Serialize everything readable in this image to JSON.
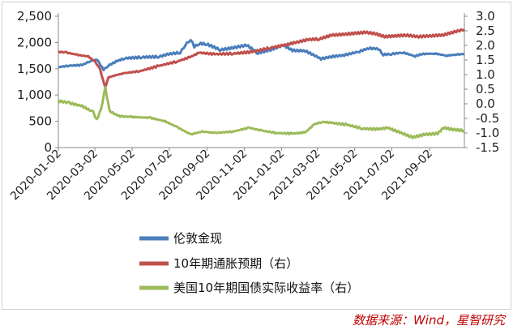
{
  "source": "数据来源：Wind，星智研究",
  "chart_data": {
    "type": "line",
    "x_ticks": [
      "2020-01-02",
      "2020-03-02",
      "2020-05-02",
      "2020-07-02",
      "2020-09-02",
      "2020-11-02",
      "2021-01-02",
      "2021-03-02",
      "2021-05-02",
      "2021-07-02",
      "2021-09-02"
    ],
    "x_range": [
      "2020-01-02",
      "2021-10-29"
    ],
    "y_left": {
      "ticks": [
        "0",
        "500",
        "1,000",
        "1,500",
        "2,000",
        "2,500"
      ],
      "min": 0,
      "max": 2500
    },
    "y_right": {
      "ticks": [
        "-1.5",
        "-1.0",
        "-0.5",
        "0.0",
        "0.5",
        "1.0",
        "1.5",
        "2.0",
        "2.5",
        "3.0"
      ],
      "min": -1.5,
      "max": 3.0
    },
    "legend_position": "bottom",
    "grid": false,
    "series": [
      {
        "name": "伦敦金现",
        "axis": "left",
        "color": "#4a7ebb",
        "points": [
          [
            "2020-01-02",
            1530
          ],
          [
            "2020-01-20",
            1560
          ],
          [
            "2020-02-10",
            1570
          ],
          [
            "2020-02-24",
            1650
          ],
          [
            "2020-03-06",
            1670
          ],
          [
            "2020-03-16",
            1480
          ],
          [
            "2020-03-24",
            1560
          ],
          [
            "2020-04-08",
            1650
          ],
          [
            "2020-04-20",
            1700
          ],
          [
            "2020-05-18",
            1720
          ],
          [
            "2020-06-15",
            1730
          ],
          [
            "2020-07-01",
            1780
          ],
          [
            "2020-07-20",
            1810
          ],
          [
            "2020-07-28",
            1950
          ],
          [
            "2020-08-06",
            2060
          ],
          [
            "2020-08-12",
            1920
          ],
          [
            "2020-08-20",
            1980
          ],
          [
            "2020-09-01",
            1970
          ],
          [
            "2020-09-24",
            1860
          ],
          [
            "2020-10-15",
            1900
          ],
          [
            "2020-11-06",
            1950
          ],
          [
            "2020-11-24",
            1800
          ],
          [
            "2020-12-15",
            1860
          ],
          [
            "2021-01-05",
            1950
          ],
          [
            "2021-01-20",
            1850
          ],
          [
            "2021-02-10",
            1840
          ],
          [
            "2021-03-08",
            1690
          ],
          [
            "2021-03-25",
            1730
          ],
          [
            "2021-04-15",
            1760
          ],
          [
            "2021-05-10",
            1830
          ],
          [
            "2021-05-25",
            1890
          ],
          [
            "2021-06-10",
            1880
          ],
          [
            "2021-06-18",
            1770
          ],
          [
            "2021-07-01",
            1780
          ],
          [
            "2021-07-20",
            1810
          ],
          [
            "2021-08-09",
            1740
          ],
          [
            "2021-08-20",
            1780
          ],
          [
            "2021-09-10",
            1790
          ],
          [
            "2021-09-30",
            1750
          ],
          [
            "2021-10-15",
            1770
          ],
          [
            "2021-10-29",
            1780
          ]
        ]
      },
      {
        "name": "10年期通胀预期（右）",
        "axis": "right",
        "color": "#c0504d",
        "points": [
          [
            "2020-01-02",
            1.78
          ],
          [
            "2020-01-15",
            1.76
          ],
          [
            "2020-02-01",
            1.68
          ],
          [
            "2020-02-20",
            1.62
          ],
          [
            "2020-03-02",
            1.45
          ],
          [
            "2020-03-10",
            1.2
          ],
          [
            "2020-03-19",
            0.55
          ],
          [
            "2020-03-24",
            0.9
          ],
          [
            "2020-04-05",
            0.98
          ],
          [
            "2020-04-20",
            1.05
          ],
          [
            "2020-05-15",
            1.12
          ],
          [
            "2020-06-15",
            1.3
          ],
          [
            "2020-07-15",
            1.45
          ],
          [
            "2020-08-05",
            1.6
          ],
          [
            "2020-08-20",
            1.75
          ],
          [
            "2020-09-15",
            1.7
          ],
          [
            "2020-10-15",
            1.72
          ],
          [
            "2020-11-15",
            1.78
          ],
          [
            "2020-12-15",
            1.92
          ],
          [
            "2021-01-05",
            2.0
          ],
          [
            "2021-01-25",
            2.1
          ],
          [
            "2021-02-15",
            2.2
          ],
          [
            "2021-03-05",
            2.22
          ],
          [
            "2021-03-25",
            2.35
          ],
          [
            "2021-04-15",
            2.38
          ],
          [
            "2021-05-05",
            2.42
          ],
          [
            "2021-05-20",
            2.45
          ],
          [
            "2021-06-05",
            2.4
          ],
          [
            "2021-06-20",
            2.3
          ],
          [
            "2021-07-10",
            2.33
          ],
          [
            "2021-07-25",
            2.35
          ],
          [
            "2021-08-15",
            2.3
          ],
          [
            "2021-09-05",
            2.33
          ],
          [
            "2021-09-25",
            2.36
          ],
          [
            "2021-10-10",
            2.45
          ],
          [
            "2021-10-29",
            2.55
          ]
        ]
      },
      {
        "name": "美国10年期国债实际收益率（右）",
        "axis": "right",
        "color": "#9bbb59",
        "points": [
          [
            "2020-01-02",
            0.1
          ],
          [
            "2020-01-20",
            0.03
          ],
          [
            "2020-02-10",
            -0.08
          ],
          [
            "2020-02-28",
            -0.28
          ],
          [
            "2020-03-05",
            -0.55
          ],
          [
            "2020-03-12",
            -0.2
          ],
          [
            "2020-03-19",
            0.55
          ],
          [
            "2020-03-26",
            -0.25
          ],
          [
            "2020-04-10",
            -0.42
          ],
          [
            "2020-05-01",
            -0.45
          ],
          [
            "2020-06-01",
            -0.48
          ],
          [
            "2020-06-25",
            -0.6
          ],
          [
            "2020-07-15",
            -0.8
          ],
          [
            "2020-08-06",
            -1.05
          ],
          [
            "2020-08-25",
            -0.95
          ],
          [
            "2020-09-15",
            -1.0
          ],
          [
            "2020-10-15",
            -0.95
          ],
          [
            "2020-11-10",
            -0.82
          ],
          [
            "2020-12-01",
            -0.92
          ],
          [
            "2020-12-25",
            -1.0
          ],
          [
            "2021-01-20",
            -1.02
          ],
          [
            "2021-02-10",
            -0.98
          ],
          [
            "2021-02-25",
            -0.7
          ],
          [
            "2021-03-10",
            -0.62
          ],
          [
            "2021-03-25",
            -0.65
          ],
          [
            "2021-04-20",
            -0.72
          ],
          [
            "2021-05-15",
            -0.85
          ],
          [
            "2021-06-10",
            -0.87
          ],
          [
            "2021-06-25",
            -0.82
          ],
          [
            "2021-07-15",
            -0.98
          ],
          [
            "2021-08-05",
            -1.15
          ],
          [
            "2021-08-25",
            -1.05
          ],
          [
            "2021-09-15",
            -1.02
          ],
          [
            "2021-09-25",
            -0.82
          ],
          [
            "2021-10-10",
            -0.88
          ],
          [
            "2021-10-29",
            -0.92
          ]
        ]
      }
    ]
  }
}
